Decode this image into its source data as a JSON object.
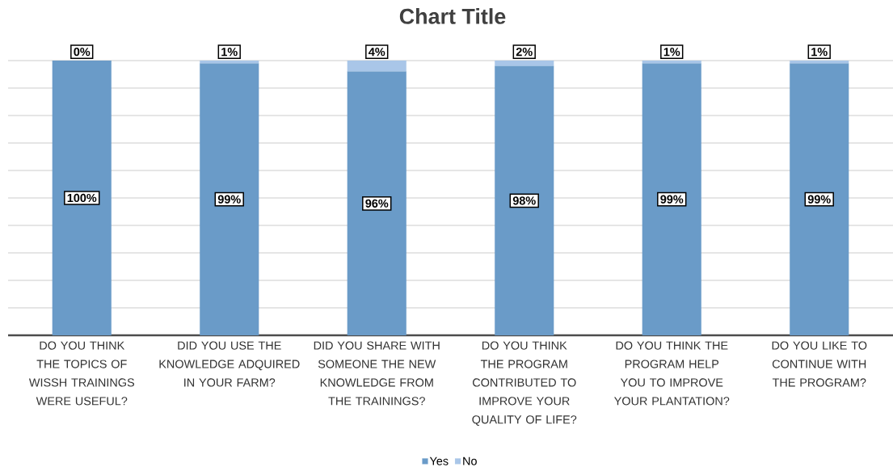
{
  "chart_data": {
    "type": "bar",
    "title": "Chart Title",
    "stacked": true,
    "categories": [
      "DO YOU THINK THE TOPICS OF WISSH TRAININGS WERE USEFUL?",
      "DID YOU USE THE KNOWLEDGE ADQUIRED IN YOUR FARM?",
      "DID YOU SHARE WITH SOMEONE THE NEW KNOWLEDGE FROM THE TRAININGS?",
      "DO YOU THINK THE PROGRAM CONTRIBUTED TO IMPROVE YOUR QUALITY OF LIFE?",
      "DO YOU THINK THE PROGRAM HELP YOU TO IMPROVE YOUR PLANTATION?",
      "DO YOU LIKE TO CONTINUE WITH THE PROGRAM?"
    ],
    "series": [
      {
        "name": "Yes",
        "color": "#6a9bc8",
        "values": [
          100,
          99,
          96,
          98,
          99,
          99
        ],
        "value_labels": [
          "100%",
          "99%",
          "96%",
          "98%",
          "99%",
          "99%"
        ]
      },
      {
        "name": "No",
        "color": "#a9c6e8",
        "values": [
          0,
          1,
          4,
          2,
          1,
          1
        ],
        "value_labels": [
          "0%",
          "1%",
          "4%",
          "2%",
          "1%",
          "1%"
        ]
      }
    ],
    "ylim": [
      0,
      100
    ],
    "yticks": [
      {
        "value": 0,
        "label": null
      },
      {
        "value": 10,
        "label": null
      },
      {
        "value": 20,
        "label": null
      },
      {
        "value": 30,
        "label": null
      },
      {
        "value": 40,
        "label": null
      },
      {
        "value": 50,
        "label": null
      },
      {
        "value": 60,
        "label": null
      },
      {
        "value": 70,
        "label": null
      },
      {
        "value": 80,
        "label": null
      },
      {
        "value": 90,
        "label": null
      },
      {
        "value": 100,
        "label": null
      }
    ],
    "tick_labels": "x",
    "grid": "y",
    "legend": "bottom"
  }
}
